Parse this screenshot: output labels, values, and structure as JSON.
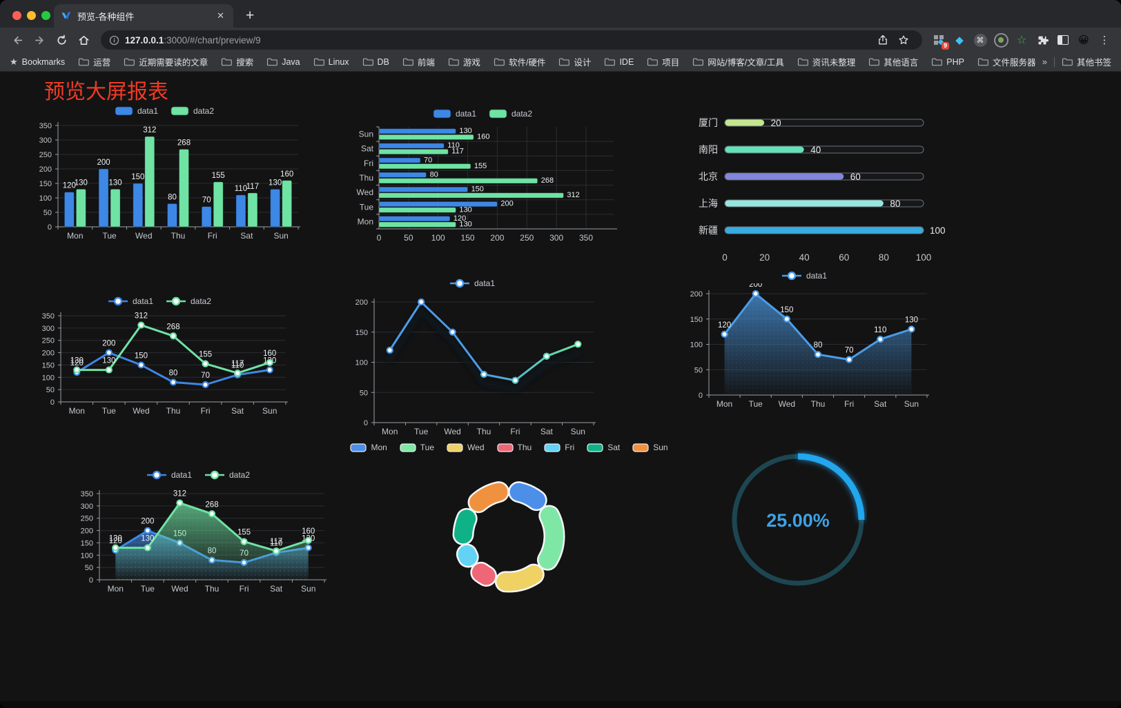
{
  "browser": {
    "tab_title": "预览-各种组件",
    "icons": {
      "close": "✕",
      "new_tab": "+",
      "menu": "⋮",
      "avatar": "😀",
      "diamond": "◆",
      "green_star": "☆",
      "cmd": "⌘",
      "bookmarks_star": "★",
      "overflow": "»"
    },
    "url_host": "127.0.0.1",
    "url_rest": ":3000/#/chart/preview/9",
    "extension_badge": "9",
    "bookmarks_label": "Bookmarks",
    "bookmarks": [
      "运营",
      "近期需要读的文章",
      "搜索",
      "Java",
      "Linux",
      "DB",
      "前端",
      "游戏",
      "软件/硬件",
      "设计",
      "IDE",
      "项目",
      "网站/博客/文章/工具",
      "资讯未整理",
      "其他语言",
      "PHP",
      "文件服务器"
    ],
    "other_bookmarks": "其他书签"
  },
  "page": {
    "title": "预览大屏报表",
    "title_color": "#EF3B24",
    "background": "#131314"
  },
  "chart_data": [
    {
      "id": "bar-grouped",
      "type": "bar",
      "categories": [
        "Mon",
        "Tue",
        "Wed",
        "Thu",
        "Fri",
        "Sat",
        "Sun"
      ],
      "series": [
        {
          "name": "data1",
          "color": "#3D87E5",
          "values": [
            120,
            200,
            150,
            80,
            70,
            110,
            130
          ]
        },
        {
          "name": "data2",
          "color": "#6FE3A4",
          "values": [
            130,
            130,
            312,
            268,
            155,
            117,
            160
          ]
        }
      ],
      "ylim": [
        0,
        350
      ],
      "ystep": 50,
      "legend": "bar",
      "labels": true
    },
    {
      "id": "bar-horizontal",
      "type": "hbar",
      "categories": [
        "Mon",
        "Tue",
        "Wed",
        "Thu",
        "Fri",
        "Sat",
        "Sun"
      ],
      "series": [
        {
          "name": "data1",
          "color": "#3D87E5",
          "values": [
            120,
            200,
            150,
            80,
            70,
            110,
            130
          ]
        },
        {
          "name": "data2",
          "color": "#6FE3A4",
          "values": [
            130,
            130,
            312,
            268,
            155,
            117,
            160
          ]
        }
      ],
      "xlim": [
        0,
        350
      ],
      "xstep": 50,
      "legend": "bar",
      "labels": true
    },
    {
      "id": "progress-bars",
      "type": "progress",
      "max": 100,
      "ticks": [
        0,
        20,
        40,
        60,
        80,
        100
      ],
      "rows": [
        {
          "label": "厦门",
          "value": 20,
          "color": "#C3E78F"
        },
        {
          "label": "南阳",
          "value": 40,
          "color": "#63E2B7"
        },
        {
          "label": "北京",
          "value": 60,
          "color": "#8287DB"
        },
        {
          "label": "上海",
          "value": 80,
          "color": "#96E6DE"
        },
        {
          "label": "新疆",
          "value": 100,
          "color": "#36ACE3"
        }
      ]
    },
    {
      "id": "line-dual",
      "type": "line",
      "categories": [
        "Mon",
        "Tue",
        "Wed",
        "Thu",
        "Fri",
        "Sat",
        "Sun"
      ],
      "series": [
        {
          "name": "data1",
          "color": "#3D87E5",
          "values": [
            120,
            200,
            150,
            80,
            70,
            110,
            130
          ]
        },
        {
          "name": "data2",
          "color": "#6FE3A4",
          "values": [
            130,
            130,
            312,
            268,
            155,
            117,
            160
          ]
        }
      ],
      "ylim": [
        0,
        350
      ],
      "ystep": 50,
      "legend": "line",
      "labels": true
    },
    {
      "id": "line-gradient",
      "type": "line",
      "categories": [
        "Mon",
        "Tue",
        "Wed",
        "Thu",
        "Fri",
        "Sat",
        "Sun"
      ],
      "series": [
        {
          "name": "data1",
          "color": "#4C9BE8",
          "color_end": "#68E6A0",
          "values": [
            120,
            200,
            150,
            80,
            70,
            110,
            130
          ]
        }
      ],
      "ylim": [
        0,
        200
      ],
      "ystep": 50,
      "legend": "line",
      "labels": false,
      "gradient_stroke": true,
      "shadow": true
    },
    {
      "id": "area-single",
      "type": "line",
      "categories": [
        "Mon",
        "Tue",
        "Wed",
        "Thu",
        "Fri",
        "Sat",
        "Sun"
      ],
      "series": [
        {
          "name": "data1",
          "color": "#4B9CE8",
          "values": [
            120,
            200,
            150,
            80,
            70,
            110,
            130
          ],
          "area": true
        }
      ],
      "ylim": [
        0,
        200
      ],
      "ystep": 50,
      "legend": "line",
      "labels": true
    },
    {
      "id": "area-dual",
      "type": "line",
      "categories": [
        "Mon",
        "Tue",
        "Wed",
        "Thu",
        "Fri",
        "Sat",
        "Sun"
      ],
      "series": [
        {
          "name": "data1",
          "color": "#3D87E5",
          "values": [
            120,
            200,
            150,
            80,
            70,
            110,
            130
          ],
          "area": true
        },
        {
          "name": "data2",
          "color": "#6FE3A4",
          "values": [
            130,
            130,
            312,
            268,
            155,
            117,
            160
          ],
          "area": true
        }
      ],
      "ylim": [
        0,
        350
      ],
      "ystep": 50,
      "legend": "line",
      "labels": true
    },
    {
      "id": "donut",
      "type": "pie",
      "labels": [
        "Mon",
        "Tue",
        "Wed",
        "Thu",
        "Fri",
        "Sat",
        "Sun"
      ],
      "values": [
        120,
        200,
        150,
        80,
        70,
        110,
        130
      ],
      "colors": [
        "#4C8FE8",
        "#7FE7A6",
        "#EFD164",
        "#EF6677",
        "#62D3F4",
        "#0FB287",
        "#F0913F"
      ],
      "legend": "pie"
    },
    {
      "id": "gauge",
      "type": "gauge",
      "value": 25,
      "display": "25.00%",
      "color": "#22A7EE",
      "track": "#1D4651",
      "text_color": "#3EA2E5"
    }
  ]
}
